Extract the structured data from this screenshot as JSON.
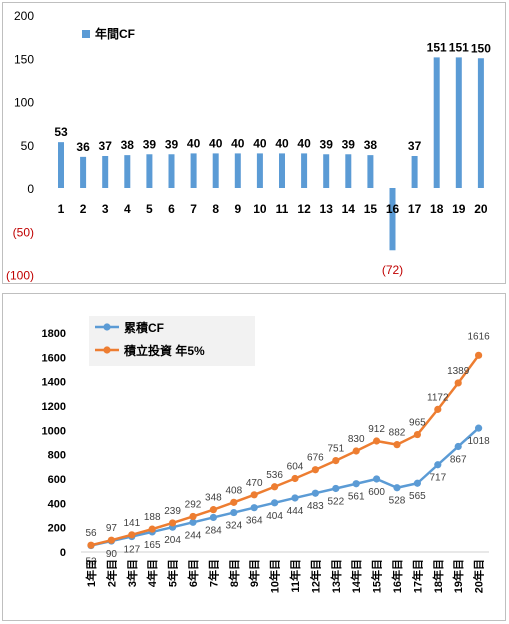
{
  "chart_data": [
    {
      "type": "bar",
      "categories": [
        "1",
        "2",
        "3",
        "4",
        "5",
        "6",
        "7",
        "8",
        "9",
        "10",
        "11",
        "12",
        "13",
        "14",
        "15",
        "16",
        "17",
        "18",
        "19",
        "20"
      ],
      "series": [
        {
          "name": "年間CF",
          "values": [
            53,
            36,
            37,
            38,
            39,
            39,
            40,
            40,
            40,
            40,
            40,
            40,
            39,
            39,
            38,
            -72,
            37,
            151,
            151,
            150
          ]
        }
      ],
      "data_labels": [
        "53",
        "36",
        "37",
        "38",
        "39",
        "39",
        "40",
        "40",
        "40",
        "40",
        "40",
        "40",
        "39",
        "39",
        "38",
        "(72)",
        "37",
        "151",
        "151",
        "150"
      ],
      "y_ticks": [
        {
          "value": 200,
          "label": "200"
        },
        {
          "value": 150,
          "label": "150"
        },
        {
          "value": 100,
          "label": "100"
        },
        {
          "value": 50,
          "label": "50"
        },
        {
          "value": 0,
          "label": "0"
        },
        {
          "value": -50,
          "label": "(50)"
        },
        {
          "value": -100,
          "label": "(100)"
        }
      ],
      "ylim": [
        -100,
        200
      ],
      "grid": false,
      "legend_position": "top-left",
      "colors": {
        "bar": "#5b9bd5",
        "negative_label": "#c00000"
      }
    },
    {
      "type": "line",
      "categories": [
        "1年目",
        "2年目",
        "3年目",
        "4年目",
        "5年目",
        "6年目",
        "7年目",
        "8年目",
        "9年目",
        "10年目",
        "11年目",
        "12年目",
        "13年目",
        "14年目",
        "15年目",
        "16年目",
        "17年目",
        "18年目",
        "19年目",
        "20年目"
      ],
      "series": [
        {
          "name": "累積CF",
          "color": "#5b9bd5",
          "values": [
            53,
            90,
            127,
            165,
            204,
            244,
            284,
            324,
            364,
            404,
            444,
            483,
            522,
            561,
            600,
            528,
            565,
            717,
            867,
            1018
          ]
        },
        {
          "name": "積立投資 年5%",
          "color": "#ed7d31",
          "values": [
            56,
            97,
            141,
            188,
            239,
            292,
            348,
            408,
            470,
            536,
            604,
            676,
            751,
            830,
            912,
            882,
            965,
            1172,
            1389,
            1616
          ]
        }
      ],
      "y_ticks": [
        {
          "value": 0,
          "label": "0"
        },
        {
          "value": 200,
          "label": "200"
        },
        {
          "value": 400,
          "label": "400"
        },
        {
          "value": 600,
          "label": "600"
        },
        {
          "value": 800,
          "label": "800"
        },
        {
          "value": 1000,
          "label": "1000"
        },
        {
          "value": 1200,
          "label": "1200"
        },
        {
          "value": 1400,
          "label": "1400"
        },
        {
          "value": 1600,
          "label": "1600"
        },
        {
          "value": 1800,
          "label": "1800"
        }
      ],
      "ylim": [
        0,
        1800
      ],
      "grid": false,
      "legend_position": "top-left"
    }
  ]
}
